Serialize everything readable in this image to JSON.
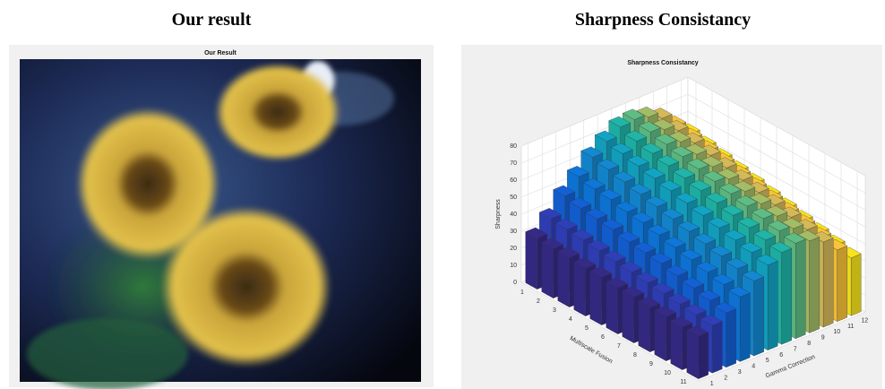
{
  "panels": [
    {
      "title": "Our result",
      "image_title": "Our Result"
    },
    {
      "title": "Sharpness Consistancy",
      "chart_data": {
        "type": "bar3d",
        "title": "Sharpness Consistancy",
        "xlabel": "Multiscale Fusion",
        "ylabel": "Gamma Correction",
        "zlabel": "Sharpness",
        "xticks": [
          1,
          2,
          3,
          4,
          5,
          6,
          7,
          8,
          9,
          10,
          11
        ],
        "yticks": [
          1,
          2,
          3,
          4,
          5,
          6,
          7,
          8,
          9,
          10,
          11,
          12
        ],
        "zlim": [
          0,
          80
        ],
        "zticks": [
          0,
          10,
          20,
          30,
          40,
          50,
          60,
          70,
          80
        ],
        "grid": true,
        "colors": [
          "#352a87",
          "#2f3fb9",
          "#1360d6",
          "#0d77db",
          "#1389d2",
          "#12a4c4",
          "#1fb5a8",
          "#5ebd85",
          "#a3bd66",
          "#d3b958",
          "#f9c33a",
          "#f8e41c"
        ],
        "values": [
          [
            30,
            38,
            48,
            56,
            64,
            70,
            75,
            76,
            74,
            70,
            62,
            54
          ],
          [
            29,
            37,
            46,
            54,
            62,
            68,
            72,
            74,
            72,
            68,
            60,
            52
          ],
          [
            29,
            36,
            45,
            53,
            60,
            66,
            70,
            72,
            70,
            66,
            58,
            50
          ],
          [
            28,
            35,
            44,
            51,
            58,
            64,
            68,
            70,
            68,
            64,
            56,
            48
          ],
          [
            28,
            34,
            42,
            50,
            56,
            62,
            66,
            68,
            66,
            62,
            54,
            46
          ],
          [
            27,
            33,
            41,
            48,
            54,
            60,
            64,
            66,
            64,
            60,
            52,
            44
          ],
          [
            27,
            32,
            40,
            46,
            52,
            58,
            62,
            64,
            62,
            58,
            50,
            42
          ],
          [
            26,
            31,
            38,
            44,
            50,
            56,
            60,
            62,
            60,
            56,
            48,
            40
          ],
          [
            26,
            30,
            36,
            42,
            48,
            54,
            58,
            60,
            58,
            54,
            46,
            38
          ],
          [
            25,
            29,
            34,
            40,
            46,
            52,
            56,
            58,
            56,
            52,
            44,
            36
          ],
          [
            25,
            28,
            32,
            38,
            44,
            50,
            54,
            56,
            54,
            50,
            42,
            34
          ]
        ]
      }
    }
  ]
}
